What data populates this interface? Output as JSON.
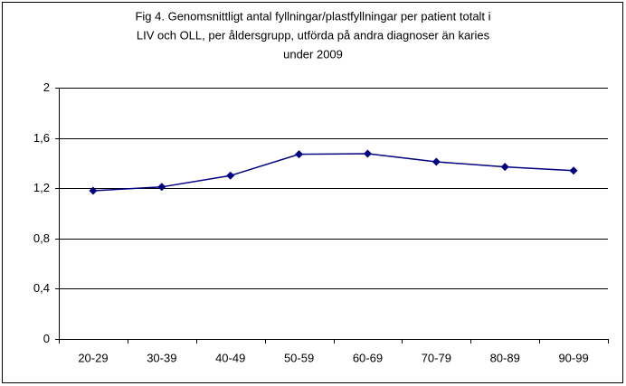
{
  "chart_data": {
    "type": "line",
    "title": [
      "Fig 4. Genomsnittligt antal fyllningar/plastfyllningar per patient totalt i",
      "LIV och OLL, per åldersgrupp, utförda på andra diagnoser än karies",
      "under 2009"
    ],
    "categories": [
      "20-29",
      "30-39",
      "40-49",
      "50-59",
      "60-69",
      "70-79",
      "80-89",
      "90-99"
    ],
    "series": [
      {
        "color": "#000080",
        "values": [
          1.18,
          1.21,
          1.3,
          1.47,
          1.475,
          1.41,
          1.37,
          1.34
        ]
      }
    ],
    "ylim": [
      0,
      2
    ],
    "yticks": [
      0,
      {
        "value": 0.4,
        "label": "0,4"
      },
      {
        "value": 0.8,
        "label": "0,8"
      },
      {
        "value": 1.2,
        "label": "1,2"
      },
      {
        "value": 1.6,
        "label": "1,6"
      },
      2
    ],
    "grid": true
  }
}
